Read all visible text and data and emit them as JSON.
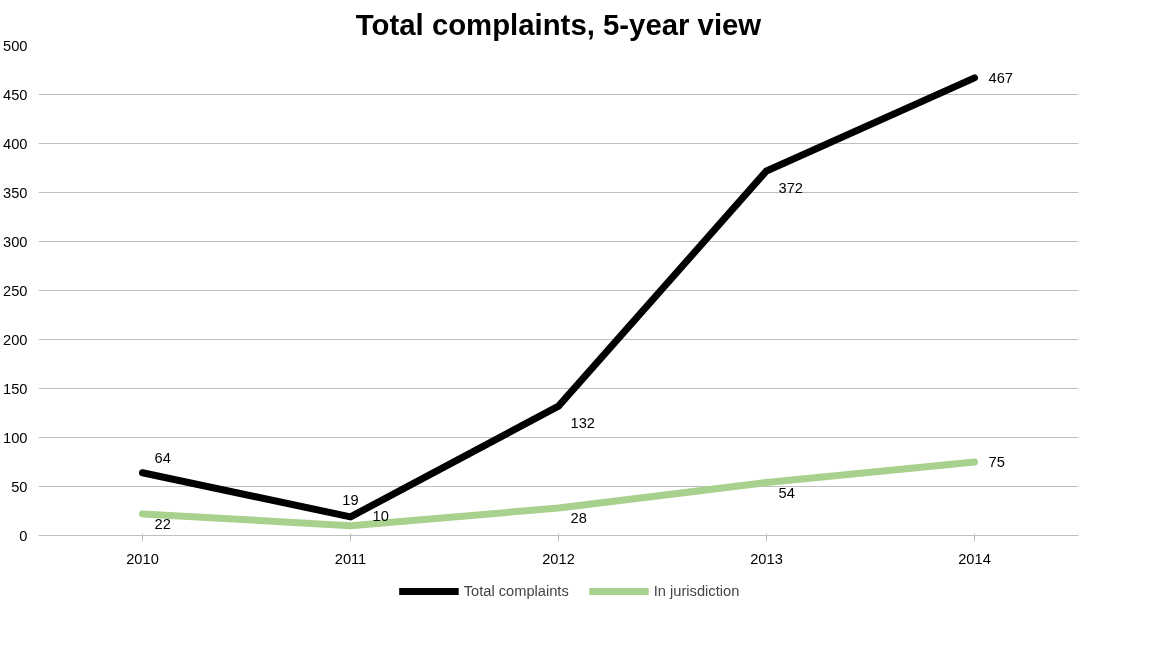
{
  "chart_data": {
    "type": "line",
    "title": "Total complaints, 5-year view",
    "categories": [
      "2010",
      "2011",
      "2012",
      "2013",
      "2014"
    ],
    "series": [
      {
        "name": "Total complaints",
        "color": "#000000",
        "values": [
          64,
          19,
          132,
          372,
          467
        ]
      },
      {
        "name": "In jurisdiction",
        "color": "#a9d18e",
        "values": [
          22,
          10,
          28,
          54,
          75
        ]
      }
    ],
    "ylim": [
      0,
      500
    ],
    "yticks": [
      0,
      50,
      100,
      150,
      200,
      250,
      300,
      350,
      400,
      450,
      500
    ],
    "grid": "y",
    "legend": "bottom",
    "data_labels": true,
    "marker": "none",
    "line_style": "solid"
  }
}
